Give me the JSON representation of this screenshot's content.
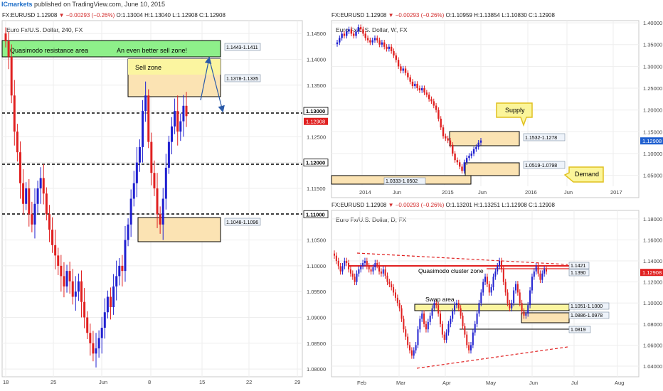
{
  "header": {
    "publisher": "ICmarkets",
    "published_text": "published on TradingView.com, June 10, 2015"
  },
  "panels": {
    "h4": {
      "title_prefix": "FX:EURUSD 1.12908",
      "title_change": "▼ −0.00293 (−0.26%)",
      "title_ohlc": "O:1.13004 H:1.13040 L:1.12908 C:1.12908",
      "label": "Euro Fx/U.S. Dollar, 240, FX"
    },
    "weekly": {
      "title_prefix": "FX:EURUSD 1.12908",
      "title_change": "▼ −0.00293 (−0.26%)",
      "title_ohlc": "O:1.10959 H:1.13854 L:1.10830 C:1.12908",
      "label": "Euro Fx/U.S. Dollar, W, FX"
    },
    "daily": {
      "title_prefix": "FX:EURUSD 1.12908",
      "title_change": "▼ −0.00293 (−0.26%)",
      "title_ohlc": "O:1.13201 H:1.13251 L:1.12908 C:1.12908",
      "label": "Euro Fx/U.S. Dollar, D, FX"
    }
  },
  "colors": {
    "up": "#2020d0",
    "down": "#e02020",
    "zone_fill": "#fbe3b3",
    "zone_fill_yellow": "#fbf5a0",
    "green_fill": "#8ef08a",
    "price_tag": "#e02020",
    "weekly_tag": "#2060d0",
    "dashed_red": "#e02020",
    "arrow": "#2a5aa8"
  },
  "chart_data": [
    {
      "type": "candlestick",
      "timeframe": "240",
      "y_ticks": [
        "1.14500",
        "1.14000",
        "1.13500",
        "1.13000",
        "1.12500",
        "1.12000",
        "1.11500",
        "1.11000",
        "1.10500",
        "1.10000",
        "1.09500",
        "1.09000",
        "1.08500",
        "1.08000"
      ],
      "ylim": [
        1.0785,
        1.1475
      ],
      "x_ticks": [
        "18",
        "25",
        "Jun",
        "8",
        "15",
        "22",
        "29"
      ],
      "current_price_label": "1.12908",
      "key_levels": [
        {
          "value": 1.13,
          "label": "1.13000"
        },
        {
          "value": 1.12,
          "label": "1.12000"
        },
        {
          "value": 1.11,
          "label": "1.11000"
        }
      ],
      "zones": [
        {
          "label": "1.1443-1.1411",
          "low": 1.1411,
          "high": 1.1443
        },
        {
          "label": "1.1378-1.1335",
          "low": 1.1335,
          "high": 1.1378
        },
        {
          "label": "1.1048-1.1096",
          "low": 1.1048,
          "high": 1.1096
        }
      ],
      "annotations": [
        "Quasimodo resistance area",
        "An even better sell zone!",
        "Sell zone"
      ],
      "series_close": [
        1.1435,
        1.1405,
        1.133,
        1.126,
        1.122,
        1.116,
        1.112,
        1.115,
        1.11,
        1.108,
        1.112,
        1.115,
        1.117,
        1.114,
        1.11,
        1.107,
        1.104,
        1.102,
        1.1,
        1.098,
        1.096,
        1.099,
        1.097,
        1.094,
        1.095,
        1.097,
        1.093,
        1.09,
        1.087,
        1.085,
        1.083,
        1.084,
        1.086,
        1.088,
        1.091,
        1.094,
        1.092,
        1.096,
        1.098,
        1.1,
        1.099,
        1.105,
        1.108,
        1.113,
        1.116,
        1.12,
        1.123,
        1.13,
        1.133,
        1.124,
        1.118,
        1.115,
        1.11,
        1.108,
        1.113,
        1.119,
        1.124,
        1.127,
        1.13,
        1.126,
        1.128,
        1.131,
        1.129
      ]
    },
    {
      "type": "candlestick",
      "timeframe": "W",
      "y_ticks": [
        "1.40000",
        "1.35000",
        "1.30000",
        "1.25000",
        "1.20000",
        "1.15000",
        "1.10000",
        "1.05000"
      ],
      "ylim": [
        1.025,
        1.405
      ],
      "x_ticks": [
        "2014",
        "Jun",
        "2015",
        "Jun",
        "2016",
        "Jun",
        "2017"
      ],
      "current_price_label": "1.12908",
      "zones": [
        {
          "label": "1.1532-1.1278",
          "low": 1.1278,
          "high": 1.1532
        },
        {
          "label": "1.0519-1.0798",
          "low": 1.0519,
          "high": 1.0798
        },
        {
          "label": "1.0333-1.0502",
          "low": 1.0333,
          "high": 1.0502
        }
      ],
      "annotations": [
        "Supply",
        "Demand"
      ]
    },
    {
      "type": "candlestick",
      "timeframe": "D",
      "y_ticks": [
        "1.18000",
        "1.16000",
        "1.14000",
        "1.12000",
        "1.10000",
        "1.08000",
        "1.06000",
        "1.04000"
      ],
      "ylim": [
        1.038,
        1.188
      ],
      "x_ticks": [
        "Feb",
        "Mar",
        "Apr",
        "May",
        "Jun",
        "Jul",
        "Aug"
      ],
      "current_price_label": "1.12908",
      "zones": [
        {
          "label": "1.1421",
          "low": 1.1421,
          "high": 1.1421
        },
        {
          "label": "1.1390",
          "low": 1.139,
          "high": 1.139
        },
        {
          "label": "1.1051-1.1000",
          "low": 1.1,
          "high": 1.1051
        },
        {
          "label": "1.0886-1.0978",
          "low": 1.0886,
          "high": 1.0978
        },
        {
          "label": "1.0819",
          "low": 1.0819,
          "high": 1.0819
        }
      ],
      "annotations": [
        "Quasimodo cluster zone",
        "Swap area"
      ]
    }
  ]
}
